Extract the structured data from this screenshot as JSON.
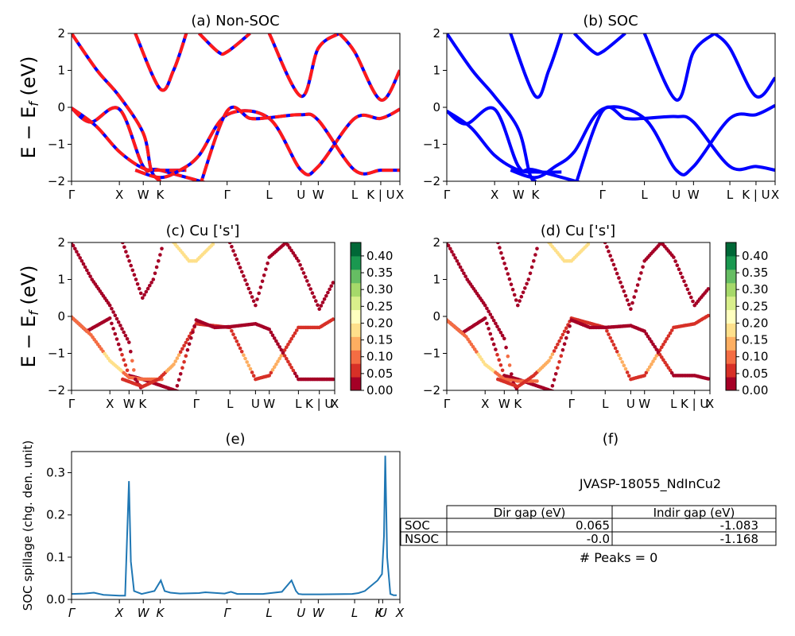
{
  "figure": {
    "ylabel_band": "E − E_f (eV)",
    "material": "JVASP-18055_NdInCu2",
    "peaks_text": "# Peaks = 0",
    "panel_f_title": "(f)"
  },
  "kpath": {
    "labels": [
      "Γ",
      "X",
      "W",
      "K",
      "Γ",
      "L",
      "U",
      "W",
      "L",
      "K | U",
      "X"
    ],
    "positions": [
      0,
      0.75,
      1.125,
      1.39,
      2.44,
      3.1,
      3.6,
      3.87,
      4.44,
      4.85,
      5.15
    ]
  },
  "gap_table": {
    "columns": [
      "",
      "Dir gap (eV)",
      "Indir gap (eV)"
    ],
    "rows": [
      {
        "label": "SOC",
        "dir": "0.065",
        "indir": "-1.083"
      },
      {
        "label": "NSOC",
        "dir": "-0.0",
        "indir": "-1.168"
      }
    ]
  },
  "colors": {
    "nsoc": "#ff1a1a",
    "soc": "#0000ff",
    "spillage": "#1f77b4",
    "colormap": [
      "#a50026",
      "#d73027",
      "#f46d43",
      "#fdae61",
      "#fee08b",
      "#ffffbf",
      "#d9ef8b",
      "#a6d96a",
      "#66bd63",
      "#1a9850",
      "#006837"
    ]
  },
  "chart_data": [
    {
      "id": "a",
      "type": "line",
      "title": "(a) Non-SOC",
      "ylabel": "E − E_f (eV)",
      "ylim": [
        -2,
        2
      ],
      "yticks": [
        "2",
        "1",
        "0",
        "−1",
        "−2"
      ],
      "xticklabels": [
        "Γ",
        "X",
        "W",
        "K",
        "Γ",
        "L",
        "U",
        "W",
        "L",
        "K | U",
        "X"
      ],
      "series_style": "red with blue dashes",
      "bands": [
        [
          [
            0,
            -0.02
          ],
          [
            0.3,
            -0.4
          ],
          [
            0.75,
            -0.05
          ],
          [
            1.125,
            -1.6
          ],
          [
            1.39,
            -1.7
          ],
          [
            2.44,
            -2.2
          ]
        ],
        [
          [
            0,
            -0.02
          ],
          [
            0.38,
            -0.5
          ],
          [
            0.75,
            -1.2
          ],
          [
            1.125,
            -1.65
          ],
          [
            1.39,
            -1.7
          ],
          [
            1.8,
            -1.7
          ]
        ],
        [
          [
            0,
            2.0
          ],
          [
            0.4,
            1.0
          ],
          [
            0.75,
            0.3
          ],
          [
            1.125,
            -0.7
          ],
          [
            1.25,
            -1.7
          ],
          [
            1.39,
            -2.0
          ]
        ],
        [
          [
            1.0,
            2.0
          ],
          [
            1.39,
            0.5
          ],
          [
            1.6,
            1.0
          ],
          [
            1.8,
            2.0
          ]
        ],
        [
          [
            1.0,
            -1.7
          ],
          [
            1.39,
            -1.9
          ],
          [
            1.7,
            -1.7
          ],
          [
            2.0,
            -1.3
          ],
          [
            2.44,
            -0.2
          ],
          [
            3.1,
            -0.3
          ],
          [
            3.6,
            -1.7
          ],
          [
            3.87,
            -1.6
          ],
          [
            4.44,
            -0.3
          ],
          [
            4.85,
            -0.3
          ],
          [
            5.15,
            -0.05
          ]
        ],
        [
          [
            2.0,
            -2.2
          ],
          [
            2.44,
            -0.1
          ],
          [
            2.8,
            -0.3
          ],
          [
            3.1,
            -0.28
          ],
          [
            3.6,
            -0.2
          ],
          [
            3.87,
            -0.35
          ],
          [
            4.44,
            -1.7
          ],
          [
            4.85,
            -1.7
          ],
          [
            5.15,
            -1.7
          ]
        ],
        [
          [
            2.0,
            2.0
          ],
          [
            2.3,
            1.5
          ],
          [
            2.44,
            1.5
          ],
          [
            2.8,
            2.0
          ]
        ],
        [
          [
            3.1,
            2.0
          ],
          [
            3.6,
            0.3
          ],
          [
            3.87,
            1.6
          ],
          [
            4.2,
            2.0
          ]
        ],
        [
          [
            4.2,
            2.0
          ],
          [
            4.44,
            1.5
          ],
          [
            4.85,
            0.2
          ],
          [
            5.15,
            1.0
          ]
        ]
      ]
    },
    {
      "id": "b",
      "type": "line",
      "title": "(b) SOC",
      "ylim": [
        -2,
        2
      ],
      "yticks": [
        "2",
        "1",
        "0",
        "−1",
        "−2"
      ],
      "xticklabels": [
        "Γ",
        "X",
        "W",
        "K",
        "Γ",
        "L",
        "U",
        "W",
        "L",
        "K | U",
        "X"
      ],
      "series_style": "blue",
      "bands": [
        [
          [
            0,
            -0.1
          ],
          [
            0.3,
            -0.45
          ],
          [
            0.75,
            -0.05
          ],
          [
            1.125,
            -1.6
          ],
          [
            1.39,
            -1.7
          ],
          [
            2.44,
            -2.2
          ]
        ],
        [
          [
            0,
            -0.1
          ],
          [
            0.38,
            -0.55
          ],
          [
            0.75,
            -1.3
          ],
          [
            1.125,
            -1.7
          ],
          [
            1.39,
            -1.75
          ],
          [
            1.8,
            -1.75
          ]
        ],
        [
          [
            0,
            2.0
          ],
          [
            0.4,
            1.0
          ],
          [
            0.75,
            0.3
          ],
          [
            1.125,
            -0.6
          ],
          [
            1.3,
            -1.8
          ],
          [
            1.39,
            -2.0
          ]
        ],
        [
          [
            1.0,
            2.0
          ],
          [
            1.39,
            0.3
          ],
          [
            1.6,
            1.0
          ],
          [
            1.8,
            2.0
          ]
        ],
        [
          [
            1.0,
            -1.7
          ],
          [
            1.39,
            -1.9
          ],
          [
            1.7,
            -1.6
          ],
          [
            2.0,
            -1.2
          ],
          [
            2.44,
            -0.05
          ],
          [
            3.1,
            -0.3
          ],
          [
            3.6,
            -1.7
          ],
          [
            3.87,
            -1.6
          ],
          [
            4.44,
            -0.3
          ],
          [
            4.85,
            -0.2
          ],
          [
            5.15,
            0.05
          ]
        ],
        [
          [
            2.0,
            -2.2
          ],
          [
            2.44,
            -0.1
          ],
          [
            2.8,
            -0.3
          ],
          [
            3.1,
            -0.3
          ],
          [
            3.6,
            -0.25
          ],
          [
            3.87,
            -0.4
          ],
          [
            4.44,
            -1.6
          ],
          [
            4.85,
            -1.6
          ],
          [
            5.15,
            -1.7
          ]
        ],
        [
          [
            2.0,
            2.0
          ],
          [
            2.3,
            1.5
          ],
          [
            2.44,
            1.5
          ],
          [
            2.8,
            2.0
          ]
        ],
        [
          [
            3.1,
            2.0
          ],
          [
            3.6,
            0.2
          ],
          [
            3.87,
            1.5
          ],
          [
            4.2,
            2.0
          ]
        ],
        [
          [
            4.2,
            2.0
          ],
          [
            4.44,
            1.6
          ],
          [
            4.85,
            0.3
          ],
          [
            5.15,
            0.8
          ]
        ]
      ]
    },
    {
      "id": "c",
      "type": "scatter",
      "title": "(c)  Cu ['s']",
      "ylim": [
        -2,
        2
      ],
      "yticks": [
        "2",
        "1",
        "0",
        "−1",
        "−2"
      ],
      "xticklabels": [
        "Γ",
        "X",
        "W",
        "K",
        "Γ",
        "L",
        "U",
        "W",
        "L",
        "K | U",
        "X"
      ],
      "colorbar_ticks": [
        "0.40",
        "0.35",
        "0.30",
        "0.25",
        "0.20",
        "0.15",
        "0.10",
        "0.05",
        "0.00"
      ],
      "colorbar_range": [
        0,
        0.44
      ]
    },
    {
      "id": "d",
      "type": "scatter",
      "title": "(d) Cu ['s']",
      "ylim": [
        -2,
        2
      ],
      "yticks": [
        "2",
        "1",
        "0",
        "−1",
        "−2"
      ],
      "xticklabels": [
        "Γ",
        "X",
        "W",
        "K",
        "Γ",
        "L",
        "U",
        "W",
        "L",
        "K | U",
        "X"
      ],
      "colorbar_ticks": [
        "0.40",
        "0.35",
        "0.30",
        "0.25",
        "0.20",
        "0.15",
        "0.10",
        "0.05",
        "0.00"
      ],
      "colorbar_range": [
        0,
        0.44
      ]
    },
    {
      "id": "e",
      "type": "line",
      "title": "(e)",
      "ylabel": "SOC spillage (chg. den. unit)",
      "ylim": [
        0,
        0.35
      ],
      "yticks": [
        "0.3",
        "0.2",
        "0.1",
        "0.0"
      ],
      "xticklabels": [
        "Γ",
        "X",
        "W",
        "K",
        "Γ",
        "L",
        "U",
        "W",
        "L",
        "K",
        "U",
        "X"
      ],
      "x": [
        0,
        0.2,
        0.35,
        0.5,
        0.75,
        0.84,
        0.9,
        0.93,
        0.98,
        1.1,
        1.3,
        1.4,
        1.46,
        1.55,
        1.7,
        2.0,
        2.1,
        2.4,
        2.5,
        2.6,
        3.0,
        3.3,
        3.45,
        3.52,
        3.56,
        3.62,
        3.9,
        4.4,
        4.5,
        4.6,
        4.8,
        4.87,
        4.9,
        4.92,
        4.95,
        5.0,
        5.05,
        5.1
      ],
      "y": [
        0.013,
        0.014,
        0.016,
        0.011,
        0.009,
        0.009,
        0.28,
        0.09,
        0.02,
        0.013,
        0.02,
        0.045,
        0.02,
        0.016,
        0.014,
        0.015,
        0.017,
        0.014,
        0.018,
        0.013,
        0.013,
        0.018,
        0.045,
        0.02,
        0.013,
        0.012,
        0.012,
        0.013,
        0.015,
        0.02,
        0.045,
        0.06,
        0.15,
        0.34,
        0.1,
        0.013,
        0.01,
        0.01
      ]
    }
  ]
}
